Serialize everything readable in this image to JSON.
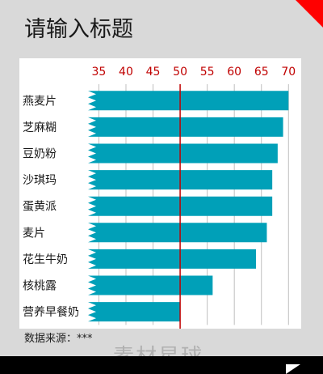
{
  "page": {
    "title": "请输入标题",
    "source_note": "数据来源：***",
    "watermark": "素材星球"
  },
  "colors": {
    "bar": "#00a0b8",
    "reference_line": "#c00000",
    "tick_label": "#c00000",
    "grid": "#bfbfbf"
  },
  "chart_data": {
    "type": "bar",
    "orientation": "horizontal",
    "title": "",
    "xlabel": "",
    "ylabel": "",
    "categories": [
      "燕麦片",
      "芝麻糊",
      "豆奶粉",
      "沙琪玛",
      "蛋黄派",
      "麦片",
      "花生牛奶",
      "核桃露",
      "营养早餐奶"
    ],
    "values": [
      70,
      69,
      68,
      67,
      67,
      66,
      64,
      56,
      50
    ],
    "xlim": [
      33,
      71
    ],
    "x_ticks": [
      35,
      40,
      45,
      50,
      55,
      60,
      65,
      70
    ],
    "x_tick_labels": [
      "35",
      "40",
      "45",
      "50",
      "55",
      "60",
      "65",
      "70"
    ],
    "axis_position": "top",
    "reference_line": 50,
    "grid": true,
    "legend": "none"
  }
}
